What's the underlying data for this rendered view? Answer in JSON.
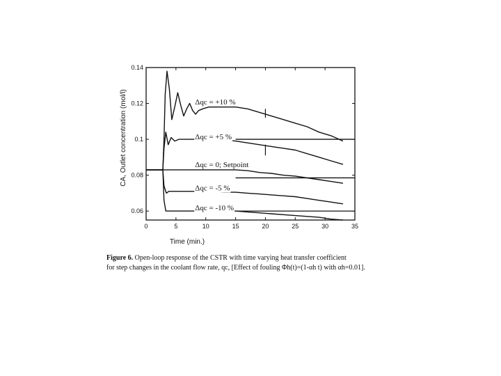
{
  "chart_data": {
    "type": "line",
    "xlabel": "Time (min.)",
    "ylabel": "CA, Outlet concentration (mol/l)",
    "xlim": [
      0,
      35
    ],
    "ylim": [
      0.055,
      0.14
    ],
    "xticks": [
      "0",
      "5",
      "10",
      "15",
      "20",
      "25",
      "30",
      "35"
    ],
    "yticks": [
      "0.14",
      "0.12",
      "0.1",
      "0.08",
      "0.06"
    ],
    "grid": false,
    "series": [
      {
        "name": "Δqc = +10 %",
        "x": [
          0,
          2.8,
          3.0,
          3.2,
          3.5,
          3.9,
          4.3,
          4.8,
          5.3,
          5.8,
          6.3,
          6.8,
          7.3,
          7.8,
          8.3,
          8.8,
          9.5,
          10.5,
          11.5,
          12.5,
          13.5,
          15,
          17,
          19,
          21,
          23,
          25,
          27,
          29,
          31,
          33
        ],
        "y": [
          0.083,
          0.083,
          0.1,
          0.125,
          0.138,
          0.128,
          0.111,
          0.118,
          0.126,
          0.119,
          0.113,
          0.117,
          0.12,
          0.116,
          0.114,
          0.116,
          0.117,
          0.118,
          0.118,
          0.118,
          0.118,
          0.118,
          0.117,
          0.115,
          0.113,
          0.111,
          0.109,
          0.107,
          0.104,
          0.102,
          0.099
        ]
      },
      {
        "name": "Δqc = +5 %",
        "x": [
          0,
          2.8,
          3.0,
          3.3,
          3.7,
          4.2,
          4.8,
          5.5,
          6.5,
          8,
          10,
          12,
          15,
          17,
          19,
          21,
          23,
          25,
          27,
          29,
          31,
          33
        ],
        "y": [
          0.083,
          0.083,
          0.095,
          0.104,
          0.097,
          0.101,
          0.099,
          0.1,
          0.1,
          0.1,
          0.1,
          0.1,
          0.099,
          0.098,
          0.097,
          0.096,
          0.095,
          0.094,
          0.092,
          0.09,
          0.088,
          0.086
        ]
      },
      {
        "name": "Δqc = 0; Setpoint",
        "x": [
          0,
          5,
          10,
          15,
          17,
          19,
          21,
          23,
          25,
          27,
          29,
          31,
          33
        ],
        "y": [
          0.083,
          0.083,
          0.083,
          0.083,
          0.0825,
          0.0815,
          0.081,
          0.08,
          0.0795,
          0.0785,
          0.0775,
          0.0765,
          0.0755
        ]
      },
      {
        "name": "Δqc = -5 %",
        "x": [
          0,
          2.8,
          3.0,
          3.4,
          3.8,
          4.5,
          6,
          8,
          10,
          13,
          15,
          17,
          19,
          21,
          23,
          25,
          27,
          29,
          31,
          33
        ],
        "y": [
          0.083,
          0.083,
          0.074,
          0.07,
          0.071,
          0.071,
          0.071,
          0.071,
          0.071,
          0.0705,
          0.0705,
          0.07,
          0.0695,
          0.069,
          0.0685,
          0.068,
          0.067,
          0.066,
          0.065,
          0.064
        ]
      },
      {
        "name": "Δqc = -10 %",
        "x": [
          0,
          2.8,
          3.0,
          3.3,
          4.0,
          6,
          10,
          15,
          17,
          19,
          21,
          23,
          25,
          27,
          29,
          31,
          33
        ],
        "y": [
          0.083,
          0.083,
          0.066,
          0.06,
          0.06,
          0.06,
          0.06,
          0.06,
          0.0595,
          0.059,
          0.0585,
          0.058,
          0.0575,
          0.057,
          0.0565,
          0.0555,
          0.055
        ]
      }
    ],
    "annotations": [
      {
        "text": "Δqc = +10 %",
        "x": 8.2,
        "y": 0.1195
      },
      {
        "text": "Δqc = +5 %",
        "x": 8.2,
        "y": 0.1
      },
      {
        "text": "Δqc = 0; Setpoint",
        "x": 8.2,
        "y": 0.0845
      },
      {
        "text": "Δqc = -5 %",
        "x": 8.2,
        "y": 0.0715
      },
      {
        "text": "Δqc = -10 %",
        "x": 8.2,
        "y": 0.0605
      }
    ],
    "reference_lines": [
      {
        "x_from": 15,
        "x_to": 35,
        "y": 0.1
      },
      {
        "x_from": 15,
        "x_to": 35,
        "y": 0.06
      },
      {
        "x_from": 15,
        "x_to": 35,
        "y": 0.0785
      }
    ],
    "vertical_markers": [
      {
        "x": 20,
        "y_from": 0.117,
        "y_to": 0.112
      },
      {
        "x": 20,
        "y_from": 0.097,
        "y_to": 0.091
      }
    ]
  },
  "caption": {
    "figure_label": "Figure 6.",
    "line1": "Open-loop response of the CSTR with time varying heat transfer coefficient",
    "line2": "for step changes in the coolant flow rate, qc, [Effect of fouling Φh(t)=(1-αh t) with αh=0.01]."
  }
}
